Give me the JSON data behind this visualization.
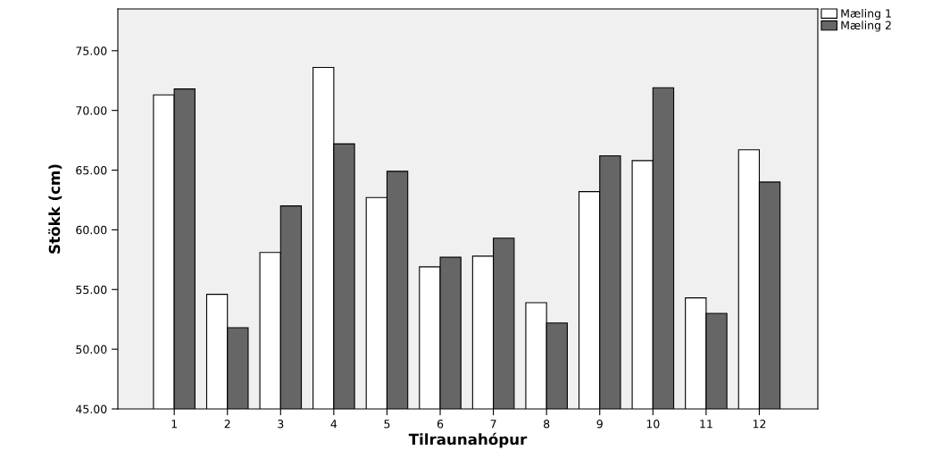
{
  "chart_data": {
    "type": "bar",
    "xlabel": "Tilraunahópur",
    "ylabel": "Stökk (cm)",
    "categories": [
      "1",
      "2",
      "3",
      "4",
      "5",
      "6",
      "7",
      "8",
      "9",
      "10",
      "11",
      "12"
    ],
    "series": [
      {
        "name": "Mæling 1",
        "color": "#ffffff",
        "values": [
          71.3,
          54.6,
          58.1,
          73.6,
          62.7,
          56.9,
          57.8,
          53.9,
          63.2,
          65.8,
          54.3,
          66.7
        ]
      },
      {
        "name": "Mæling 2",
        "color": "#666666",
        "values": [
          71.8,
          51.8,
          62.0,
          67.2,
          64.9,
          57.7,
          59.3,
          52.2,
          66.2,
          71.9,
          53.0,
          64.0
        ]
      }
    ],
    "ylim": [
      45,
      78.5
    ],
    "yticks": [
      {
        "value": 45,
        "label": "45.00"
      },
      {
        "value": 50,
        "label": "50.00"
      },
      {
        "value": 55,
        "label": "55.00"
      },
      {
        "value": 60,
        "label": "60.00"
      },
      {
        "value": 65,
        "label": "65.00"
      },
      {
        "value": 70,
        "label": "70.00"
      },
      {
        "value": 75,
        "label": "75.00"
      }
    ],
    "grid": false,
    "legend": "top right"
  }
}
